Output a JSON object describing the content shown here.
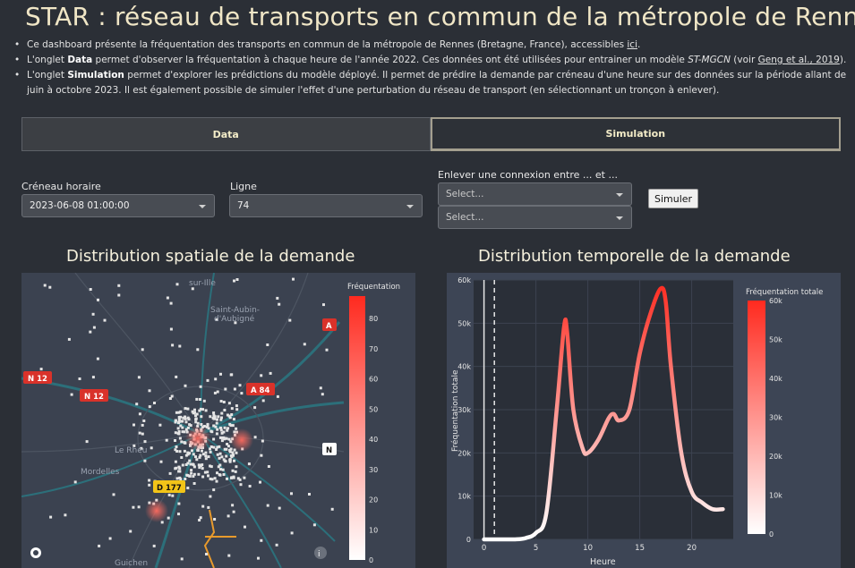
{
  "header": {
    "title": "STAR : réseau de transports en commun de la métropole de Rennes"
  },
  "intro": {
    "line1_text": "Ce dashboard présente la fréquentation des transports en commun de la métropole de Rennes (Bretagne, France), accessibles ",
    "line1_link": "ici",
    "line1_end": ".",
    "line2_a": "L'onglet ",
    "line2_bold": "Data",
    "line2_b": " permet d'observer la fréquentation à chaque heure de l'année 2022. Ces données ont été utilisées pour entrainer un modèle ",
    "line2_model": "ST-MGCN",
    "line2_c": " (voir ",
    "line2_link": "Geng et al., 2019",
    "line2_d": ").",
    "line3_a": "L'onglet ",
    "line3_bold": "Simulation",
    "line3_b": " permet d'explorer les prédictions du modèle déployé. Il permet de prédire la demande par créneau d'une heure sur des données sur la période allant de juin à octobre 2023. Il est également possible de simuler l'effet d'une perturbation du réseau de transport (en sélectionnant un tronçon à enlever)."
  },
  "tabs": [
    {
      "label": "Data",
      "active": false
    },
    {
      "label": "Simulation",
      "active": true
    }
  ],
  "controls": {
    "timeslot_label": "Créneau horaire",
    "timeslot_value": "2023-06-08 01:00:00",
    "line_label": "Ligne",
    "line_value": "74",
    "remove_label": "Enlever une connexion entre ... et ...",
    "remove_from_placeholder": "Select...",
    "remove_to_placeholder": "Select...",
    "simulate_button": "Simuler"
  },
  "map": {
    "title": "Distribution spatiale de la demande",
    "colorbar_title": "Fréquentation",
    "colorbar_ticks": [
      "80",
      "70",
      "60",
      "50",
      "40",
      "30",
      "20",
      "10",
      "0"
    ],
    "place_labels": [
      {
        "text": "sur-Ille"
      },
      {
        "text": "Saint-Aubin-"
      },
      {
        "text": "d'Aubigné"
      },
      {
        "text": "Le Rheu"
      },
      {
        "text": "Mordelles"
      },
      {
        "text": "Guichen"
      }
    ],
    "road_shields": [
      {
        "text": "N 12",
        "color": "#d9322a"
      },
      {
        "text": "N 12",
        "color": "#d9322a"
      },
      {
        "text": "A 84",
        "color": "#d9322a"
      },
      {
        "text": "A",
        "color": "#d9322a"
      },
      {
        "text": "N",
        "color": "#ffffff"
      },
      {
        "text": "D 177",
        "color": "#f2c418"
      }
    ],
    "colors": {
      "high": "#ff2a1f",
      "low": "#ffffff",
      "route": "#e89a2c"
    }
  },
  "temporal": {
    "title": "Distribution temporelle de la demande",
    "colorbar_title": "Fréquentation totale"
  },
  "chart_data": {
    "type": "line",
    "title": "Distribution temporelle de la demande",
    "xlabel": "Heure",
    "ylabel": "Fréquentation totale",
    "xlim": [
      -1,
      24
    ],
    "ylim": [
      0,
      60000
    ],
    "x_ticks": [
      "0",
      "5",
      "10",
      "15",
      "20"
    ],
    "y_ticks": [
      "0",
      "10k",
      "20k",
      "30k",
      "40k",
      "50k",
      "60k"
    ],
    "colorbar_ticks": [
      "60k",
      "50k",
      "40k",
      "30k",
      "20k",
      "10k",
      "0"
    ],
    "series": [
      {
        "x": [
          0,
          1,
          2,
          3,
          4,
          5,
          6,
          7,
          7.7,
          8,
          8.6,
          9.5,
          10,
          11,
          12,
          12.5,
          13,
          14,
          15,
          16,
          17,
          17.5,
          18,
          19,
          20,
          21,
          22,
          23
        ],
        "y": [
          0,
          0,
          0,
          0,
          300,
          1500,
          6000,
          30000,
          49000,
          48000,
          30000,
          21000,
          20000,
          23000,
          28000,
          29000,
          27500,
          30000,
          43000,
          52000,
          58000,
          55000,
          40000,
          20000,
          11000,
          8500,
          7000,
          7000
        ]
      }
    ],
    "markers": [
      {
        "x": 0,
        "style": "solid"
      },
      {
        "x": 1,
        "style": "dashed"
      }
    ],
    "colorscale": [
      "#ffffff",
      "#ff2a1f"
    ]
  }
}
